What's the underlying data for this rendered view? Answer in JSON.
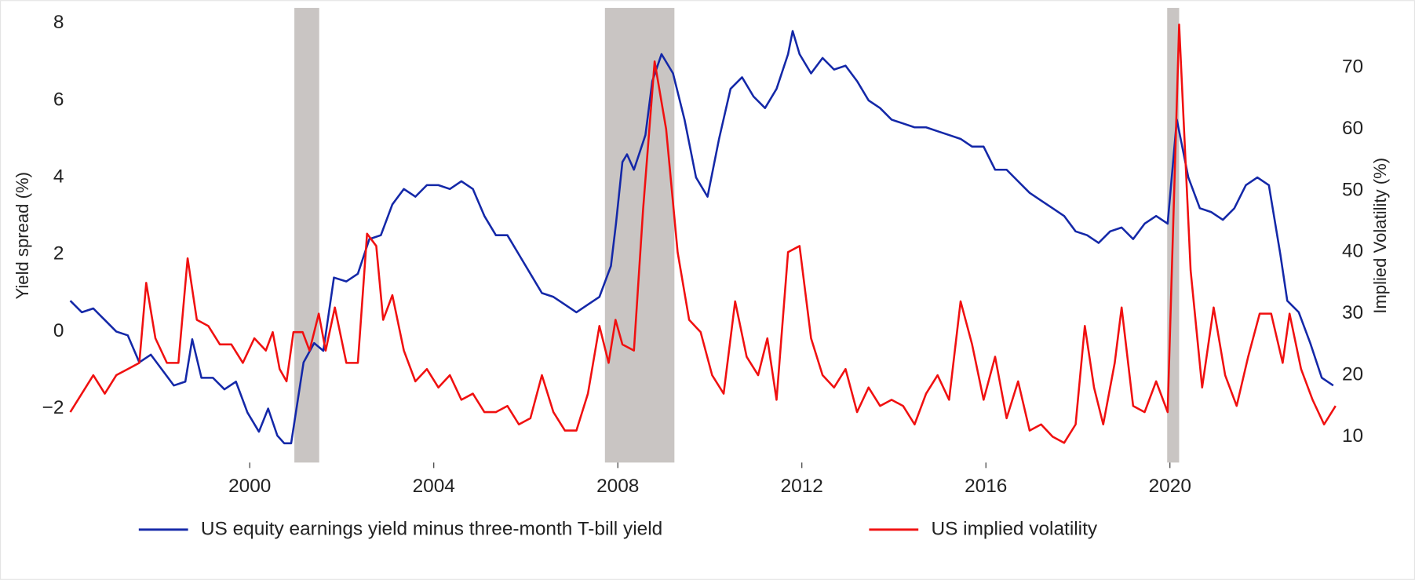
{
  "chart_data": {
    "type": "line",
    "y_label": "Yield spread (%)",
    "y2_label": "Implied Volatility (%)",
    "xlim": [
      1996.1,
      2023.6
    ],
    "xticks": [
      2000,
      2004,
      2008,
      2012,
      2016,
      2020
    ],
    "ylim": [
      -3.4,
      8.4
    ],
    "yticks": [
      {
        "value": -2,
        "label": "−2"
      },
      0,
      2,
      4,
      6,
      8
    ],
    "y2lim": [
      5.8,
      79.7
    ],
    "y2ticks": [
      10,
      20,
      30,
      40,
      50,
      60,
      70
    ],
    "shaded_regions": [
      [
        2000.97,
        2001.51
      ],
      [
        2007.72,
        2009.23
      ],
      [
        2019.94,
        2020.2
      ]
    ],
    "shade_color": "#c9c5c3",
    "series": [
      {
        "name": "US equity earnings yield minus three-month T-bill yield",
        "color": "#1428a8",
        "x": [
          1996.1,
          1996.35,
          1996.6,
          1996.85,
          1997.1,
          1997.35,
          1997.6,
          1997.85,
          1998.1,
          1998.35,
          1998.6,
          1998.75,
          1998.95,
          1999.2,
          1999.45,
          1999.7,
          1999.95,
          2000.2,
          2000.4,
          2000.6,
          2000.75,
          2000.9,
          2001.17,
          2001.4,
          2001.6,
          2001.83,
          2002.1,
          2002.35,
          2002.6,
          2002.85,
          2003.1,
          2003.35,
          2003.6,
          2003.85,
          2004.1,
          2004.35,
          2004.6,
          2004.85,
          2005.1,
          2005.35,
          2005.6,
          2005.85,
          2006.1,
          2006.35,
          2006.6,
          2006.85,
          2007.1,
          2007.35,
          2007.6,
          2007.85,
          2007.96,
          2008.1,
          2008.2,
          2008.35,
          2008.6,
          2008.75,
          2008.95,
          2009.2,
          2009.45,
          2009.7,
          2009.95,
          2010.2,
          2010.45,
          2010.7,
          2010.95,
          2011.2,
          2011.45,
          2011.7,
          2011.8,
          2011.95,
          2012.2,
          2012.45,
          2012.7,
          2012.95,
          2013.2,
          2013.45,
          2013.7,
          2013.95,
          2014.2,
          2014.45,
          2014.7,
          2014.95,
          2015.2,
          2015.45,
          2015.7,
          2015.95,
          2016.2,
          2016.45,
          2016.7,
          2016.95,
          2017.2,
          2017.45,
          2017.7,
          2017.95,
          2018.2,
          2018.45,
          2018.7,
          2018.95,
          2019.2,
          2019.45,
          2019.7,
          2019.95,
          2020.15,
          2020.4,
          2020.65,
          2020.9,
          2021.15,
          2021.4,
          2021.65,
          2021.9,
          2022.15,
          2022.4,
          2022.55,
          2022.8,
          2023.05,
          2023.3,
          2023.55
        ],
        "values": [
          0.8,
          0.5,
          0.6,
          0.3,
          0.0,
          -0.1,
          -0.8,
          -0.6,
          -1.0,
          -1.4,
          -1.3,
          -0.2,
          -1.2,
          -1.2,
          -1.5,
          -1.3,
          -2.1,
          -2.6,
          -2.0,
          -2.7,
          -2.9,
          -2.9,
          -0.8,
          -0.3,
          -0.5,
          1.4,
          1.3,
          1.5,
          2.4,
          2.5,
          3.3,
          3.7,
          3.5,
          3.8,
          3.8,
          3.7,
          3.9,
          3.7,
          3.0,
          2.5,
          2.5,
          2.0,
          1.5,
          1.0,
          0.9,
          0.7,
          0.5,
          0.7,
          0.9,
          1.7,
          2.8,
          4.4,
          4.6,
          4.2,
          5.1,
          6.5,
          7.2,
          6.7,
          5.5,
          4.0,
          3.5,
          5.0,
          6.3,
          6.6,
          6.1,
          5.8,
          6.3,
          7.2,
          7.8,
          7.2,
          6.7,
          7.1,
          6.8,
          6.9,
          6.5,
          6.0,
          5.8,
          5.5,
          5.4,
          5.3,
          5.3,
          5.2,
          5.1,
          5.0,
          4.8,
          4.8,
          4.2,
          4.2,
          3.9,
          3.6,
          3.4,
          3.2,
          3.0,
          2.6,
          2.5,
          2.3,
          2.6,
          2.7,
          2.4,
          2.8,
          3.0,
          2.8,
          5.5,
          4.0,
          3.2,
          3.1,
          2.9,
          3.2,
          3.8,
          4.0,
          3.8,
          2.0,
          0.8,
          0.5,
          -0.3,
          -1.2,
          -1.4
        ]
      },
      {
        "name": "US implied volatility",
        "color": "#f01010",
        "axis": "y2",
        "x": [
          1996.1,
          1996.35,
          1996.6,
          1996.85,
          1997.1,
          1997.35,
          1997.6,
          1997.75,
          1997.95,
          1998.2,
          1998.45,
          1998.65,
          1998.85,
          1999.1,
          1999.35,
          1999.6,
          1999.85,
          2000.1,
          2000.35,
          2000.5,
          2000.65,
          2000.8,
          2000.95,
          2001.15,
          2001.3,
          2001.5,
          2001.65,
          2001.85,
          2002.1,
          2002.35,
          2002.55,
          2002.75,
          2002.9,
          2003.1,
          2003.35,
          2003.6,
          2003.85,
          2004.1,
          2004.35,
          2004.6,
          2004.85,
          2005.1,
          2005.35,
          2005.6,
          2005.85,
          2006.1,
          2006.35,
          2006.6,
          2006.85,
          2007.1,
          2007.35,
          2007.6,
          2007.8,
          2007.95,
          2008.1,
          2008.35,
          2008.55,
          2008.8,
          2009.05,
          2009.3,
          2009.55,
          2009.8,
          2010.05,
          2010.3,
          2010.55,
          2010.8,
          2011.05,
          2011.25,
          2011.45,
          2011.7,
          2011.95,
          2012.2,
          2012.45,
          2012.7,
          2012.95,
          2013.2,
          2013.45,
          2013.7,
          2013.95,
          2014.2,
          2014.45,
          2014.7,
          2014.95,
          2015.2,
          2015.45,
          2015.7,
          2015.95,
          2016.2,
          2016.45,
          2016.7,
          2016.95,
          2017.2,
          2017.45,
          2017.7,
          2017.95,
          2018.15,
          2018.35,
          2018.55,
          2018.8,
          2018.95,
          2019.2,
          2019.45,
          2019.7,
          2019.95,
          2020.2,
          2020.45,
          2020.7,
          2020.95,
          2021.2,
          2021.45,
          2021.7,
          2021.95,
          2022.2,
          2022.45,
          2022.6,
          2022.85,
          2023.1,
          2023.35,
          2023.6
        ],
        "values": [
          14,
          17,
          20,
          17,
          20,
          21,
          22,
          35,
          26,
          22,
          22,
          39,
          29,
          28,
          25,
          25,
          22,
          26,
          24,
          27,
          21,
          19,
          27,
          27,
          24,
          30,
          24,
          31,
          22,
          22,
          43,
          41,
          29,
          33,
          24,
          19,
          21,
          18,
          20,
          16,
          17,
          14,
          14,
          15,
          12,
          13,
          20,
          14,
          11,
          11,
          17,
          28,
          22,
          29,
          25,
          24,
          47,
          71,
          60,
          40,
          29,
          27,
          20,
          17,
          32,
          23,
          20,
          26,
          16,
          40,
          41,
          26,
          20,
          18,
          21,
          14,
          18,
          15,
          16,
          15,
          12,
          17,
          20,
          16,
          32,
          25,
          16,
          23,
          13,
          19,
          11,
          12,
          10,
          9,
          12,
          28,
          18,
          12,
          22,
          31,
          15,
          14,
          19,
          14,
          77,
          37,
          18,
          31,
          20,
          15,
          23,
          30,
          30,
          22,
          30,
          21,
          16,
          12,
          15
        ]
      }
    ]
  }
}
